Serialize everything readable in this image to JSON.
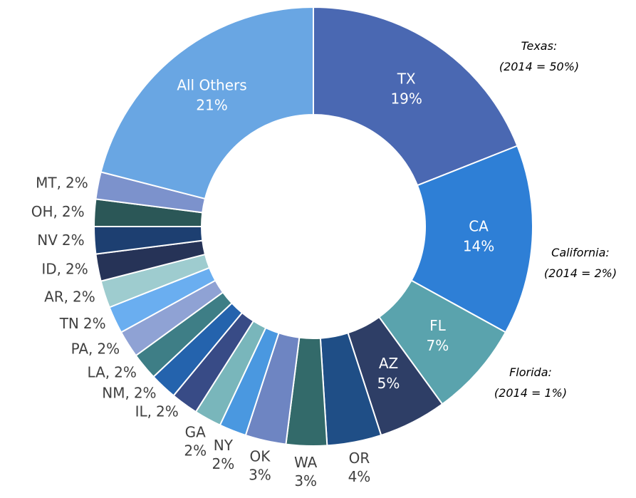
{
  "chart_data": {
    "type": "donut",
    "categories": [
      "TX",
      "CA",
      "FL",
      "AZ",
      "OR",
      "WA",
      "OK",
      "NY",
      "GA",
      "IL,",
      "NM,",
      "LA,",
      "PA,",
      "TN",
      "AR,",
      "ID,",
      "NV",
      "OH,",
      "MT,",
      "All Others"
    ],
    "values": [
      19,
      14,
      7,
      5,
      4,
      3,
      3,
      2,
      2,
      2,
      2,
      2,
      2,
      2,
      2,
      2,
      2,
      2,
      2,
      21
    ],
    "value_labels": [
      "19%",
      "14%",
      "7%",
      "5%",
      "4%",
      "3%",
      "3%",
      "2%",
      "2%",
      "2%",
      "2%",
      "2%",
      "2%",
      "2%",
      "2%",
      "2%",
      "2%",
      "2%",
      "2%",
      "21%"
    ],
    "colors": [
      "#4a68b2",
      "#2e7fd6",
      "#5aa3ad",
      "#2e3e66",
      "#1f4e86",
      "#336a6a",
      "#6e85c2",
      "#4a98e0",
      "#79b6bb",
      "#384b86",
      "#2463ad",
      "#3e7e86",
      "#8fa2d4",
      "#6aaef0",
      "#9ecccf",
      "#263357",
      "#1d3f71",
      "#2b5757",
      "#7c92cc",
      "#69a6e3"
    ],
    "annotations": [
      {
        "lines": [
          "Texas:",
          "(2014 = 50%)"
        ]
      },
      {
        "lines": [
          "California:",
          "(2014 = 2%)"
        ]
      },
      {
        "lines": [
          "Florida:",
          "(2014 = 1%)"
        ]
      }
    ]
  }
}
